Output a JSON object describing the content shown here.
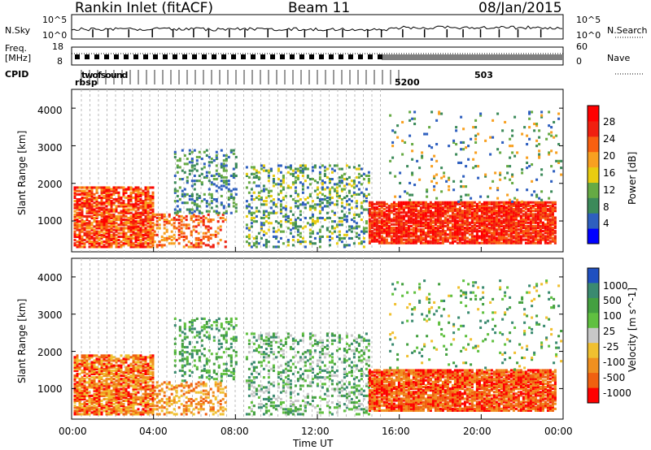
{
  "header": {
    "station": "Rankin Inlet (fitACF)",
    "beam": "Beam 11",
    "date": "08/Jan/2015"
  },
  "noise_panel": {
    "left_label": "N.Sky",
    "right_label": "N.Search",
    "left_ticks": [
      "10^5",
      "10^0"
    ],
    "right_ticks": [
      "10^5",
      "10^0"
    ]
  },
  "freq_panel": {
    "left_label_line1": "Freq.",
    "left_label_line2": "[MHz]",
    "right_label": "Nave",
    "left_ticks": [
      "18",
      "8"
    ],
    "right_ticks": [
      "60",
      "0"
    ]
  },
  "cpid": {
    "label": "CPID",
    "row1_text": "twofsound",
    "row2_text": "rbsp",
    "tail_text_1": "503",
    "tail_text_2": "5200"
  },
  "colors": {
    "power_scale": [
      "#0000ff",
      "#2e5fbf",
      "#3c8a5a",
      "#66aa44",
      "#e8cc10",
      "#f8a020",
      "#f86010",
      "#f02010",
      "#ff0000"
    ],
    "velocity_scale": [
      "#2050c0",
      "#3a8a70",
      "#44a040",
      "#60c040",
      "#c8c8c8",
      "#f0c030",
      "#f09020",
      "#f06010",
      "#ff0000"
    ],
    "gray_marker": "#c8c8c8"
  },
  "chart_data": [
    {
      "type": "heatmap",
      "panel": "power",
      "ylabel": "Slant Range [km]",
      "yticks": [
        "1000",
        "2000",
        "3000",
        "4000"
      ],
      "ylim": [
        180,
        4500
      ],
      "colorbar_label": "Power [dB]",
      "colorbar_ticks": [
        "4",
        "8",
        "12",
        "16",
        "20",
        "24",
        "28"
      ],
      "colorbar_range": [
        0,
        30
      ],
      "x_ticks": [
        "00:00",
        "04:00",
        "08:00",
        "12:00",
        "16:00",
        "20:00",
        "00:00"
      ],
      "xlim_hours": [
        0,
        24
      ]
    },
    {
      "type": "heatmap",
      "panel": "velocity",
      "ylabel": "Slant Range [km]",
      "yticks": [
        "1000",
        "2000",
        "3000",
        "4000"
      ],
      "ylim": [
        180,
        4500
      ],
      "colorbar_label": "Velocity [m s^-1]",
      "colorbar_ticks": [
        "1000",
        "500",
        "100",
        "25",
        "-25",
        "-100",
        "-500",
        "-1000"
      ],
      "x_ticks": [
        "00:00",
        "04:00",
        "08:00",
        "12:00",
        "16:00",
        "20:00",
        "00:00"
      ],
      "xlabel": "Time UT",
      "xlim_hours": [
        0,
        24
      ]
    }
  ]
}
